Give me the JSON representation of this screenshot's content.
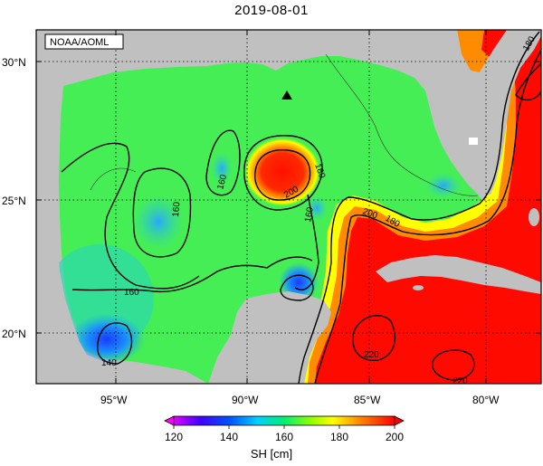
{
  "title": "2019-08-01",
  "source": "NOAA/AOML",
  "axes": {
    "lat_labels": [
      "30°N",
      "25°N",
      "20°N"
    ],
    "lon_labels": [
      "95°W",
      "90°W",
      "85°W",
      "80°W"
    ]
  },
  "contour_labels": [
    "180",
    "160",
    "160",
    "180",
    "200",
    "160",
    "200",
    "180",
    "160",
    "140",
    "220",
    "220"
  ],
  "marker": {
    "name": "triangle",
    "lon": -88.3,
    "lat": 28.6
  },
  "colorbar": {
    "title": "SH [cm]",
    "ticks": [
      "120",
      "140",
      "160",
      "180",
      "200"
    ],
    "colors": [
      "#ff00ff",
      "#0000ff",
      "#00c8ff",
      "#00ff64",
      "#aaff00",
      "#ffff00",
      "#ff8c00",
      "#ff0000"
    ]
  },
  "colors": {
    "land": "#c0c0c0",
    "warm": "#ff0000",
    "mid": "#46f050",
    "low": "#1478ff"
  }
}
